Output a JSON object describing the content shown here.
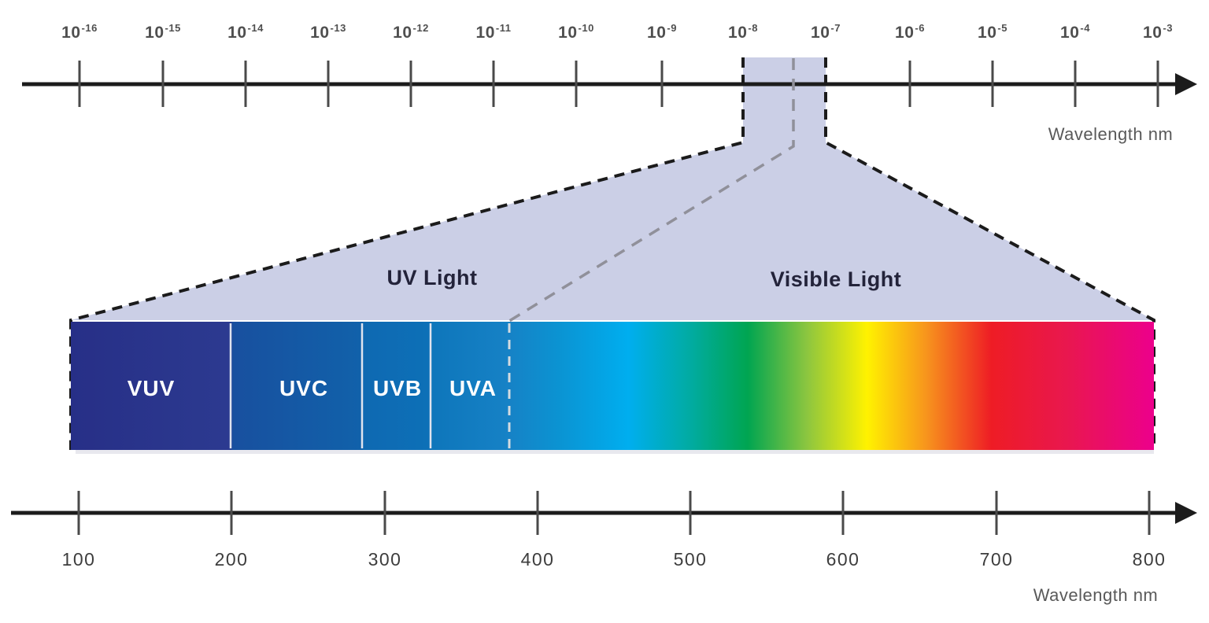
{
  "title": "Electromagnetic spectrum diagram: UV and visible light wavelengths",
  "colors": {
    "beam_lavender": "#cbcfe6",
    "axis_black": "#1c1c1c",
    "tick_gray": "#4a4a4a",
    "tick_label_gray": "#4f4f4f",
    "caption_gray": "#595959",
    "section_label_navy": "#23233a",
    "band_text_white": "#ffffff",
    "gray_dash": "#90909a",
    "vuv_navy": "#272f87",
    "uvc_blue": "#18509f",
    "uvb_blue": "#0d70b7",
    "uva_blue": "#1682c6",
    "visible_cyan": "#00aeef",
    "visible_green": "#00a551",
    "visible_yellow": "#fff200",
    "visible_orange": "#f7941d",
    "visible_red": "#ee1c25",
    "visible_magenta": "#ec008c"
  },
  "top_axis": {
    "base": "10",
    "exponents": [
      "-16",
      "-15",
      "-14",
      "-13",
      "-12",
      "-11",
      "-10",
      "-9",
      "-8",
      "-7",
      "-6",
      "-5",
      "-4",
      "-3"
    ],
    "caption": "Wavelength nm"
  },
  "bottom_axis": {
    "ticks": [
      "100",
      "200",
      "300",
      "400",
      "500",
      "600",
      "700",
      "800"
    ],
    "caption": "Wavelength nm"
  },
  "sections": {
    "uv": "UV Light",
    "visible": "Visible Light"
  },
  "bands": [
    {
      "name": "VUV",
      "approx_range_nm": "100-200"
    },
    {
      "name": "UVC",
      "approx_range_nm": "200-280"
    },
    {
      "name": "UVB",
      "approx_range_nm": "280-330"
    },
    {
      "name": "UVA",
      "approx_range_nm": "330-380"
    }
  ],
  "visible_range_nm_approx": "380-800"
}
